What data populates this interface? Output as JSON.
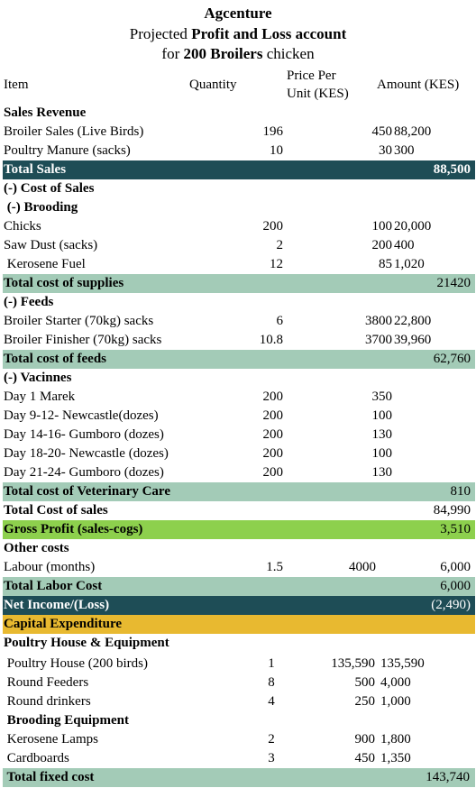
{
  "header": {
    "title": "Agcenture",
    "line2_plain": "Projected ",
    "line2_bold": "Profit and Loss account",
    "line3_plain1": "for ",
    "line3_bold": "200 Broilers",
    "line3_plain2": " chicken"
  },
  "columns": {
    "item": "Item",
    "quantity": "Quantity",
    "price_line1": "Price Per",
    "price_line2": "Unit (KES)",
    "amount": "Amount (KES)"
  },
  "sales": {
    "heading": "Sales Revenue",
    "rows": [
      {
        "item": "Broiler Sales (Live Birds)",
        "qty": "196",
        "price": "450",
        "amount": "88,200"
      },
      {
        "item": "Poultry Manure (sacks)",
        "qty": "10",
        "price": "30",
        "amount": "300"
      }
    ],
    "total_label": "Total Sales",
    "total_value": "88,500"
  },
  "cost_of_sales_heading": "(-) Cost of Sales",
  "brooding": {
    "heading": " (-) Brooding",
    "rows": [
      {
        "item": "Chicks",
        "qty": "200",
        "price": "100",
        "amount": "20,000"
      },
      {
        "item": "Saw Dust (sacks)",
        "qty": "2",
        "price": "200",
        "amount": "400"
      },
      {
        "item": " Kerosene Fuel",
        "qty": "12",
        "price": "85",
        "amount": "1,020"
      }
    ],
    "total_label": "Total cost of supplies",
    "total_value": "21420"
  },
  "feeds": {
    "heading": "(-) Feeds",
    "rows": [
      {
        "item": "Broiler Starter (70kg) sacks",
        "qty": "6",
        "price": "3800",
        "amount": "22,800"
      },
      {
        "item": "Broiler Finisher (70kg) sacks",
        "qty": "10.8",
        "price": "3700",
        "amount": "39,960"
      }
    ],
    "total_label": "Total cost of feeds",
    "total_value": "62,760"
  },
  "vaccines": {
    "heading": "(-) Vacinnes",
    "rows": [
      {
        "item": "Day 1 Marek",
        "qty": "200",
        "price": "350"
      },
      {
        "item": "Day 9-12- Newcastle(dozes)",
        "qty": "200",
        "price": "100"
      },
      {
        "item": "Day 14-16- Gumboro (dozes)",
        "qty": "200",
        "price": "130"
      },
      {
        "item": "Day 18-20- Newcastle (dozes)",
        "qty": "200",
        "price": "100"
      },
      {
        "item": "Day 21-24- Gumboro (dozes)",
        "qty": "200",
        "price": "130"
      }
    ],
    "total_label": "Total cost of Veterinary Care",
    "total_value": "810"
  },
  "total_cost_of_sales": {
    "label": "Total Cost of sales",
    "value": "84,990"
  },
  "gross_profit": {
    "label": "Gross Profit (sales-cogs)",
    "value": "3,510"
  },
  "other_costs": {
    "heading": "Other costs",
    "labour": {
      "item": "Labour (months)",
      "qty": "1.5",
      "price": "4000",
      "value": "6,000"
    },
    "total_label": "Total Labor Cost",
    "total_value": "6,000"
  },
  "net_income": {
    "label": "Net Income/(Loss)",
    "value": "(2,490)"
  },
  "capex": {
    "heading": "Capital Expenditure",
    "house_heading": "Poultry House & Equipment",
    "house_rows": [
      {
        "item": " Poultry House (200 birds)",
        "qty": "1",
        "price": "135,590",
        "amount": "135,590"
      },
      {
        "item": " Round Feeders",
        "qty": "8",
        "price": "500",
        "amount": "4,000"
      },
      {
        "item": " Round drinkers",
        "qty": "4",
        "price": "250",
        "amount": "1,000"
      }
    ],
    "brooding_heading": " Brooding Equipment",
    "brooding_rows": [
      {
        "item": " Kerosene Lamps",
        "qty": "2",
        "price": "900",
        "amount": "1,800"
      },
      {
        "item": " Cardboards",
        "qty": "3",
        "price": "450",
        "amount": "1,350"
      }
    ],
    "total_label": " Total fixed cost",
    "total_value": "143,740"
  },
  "colors": {
    "dark": "#1e4d56",
    "mint": "#a3cbb7",
    "lime": "#8dd04d",
    "gold": "#e8b930"
  }
}
